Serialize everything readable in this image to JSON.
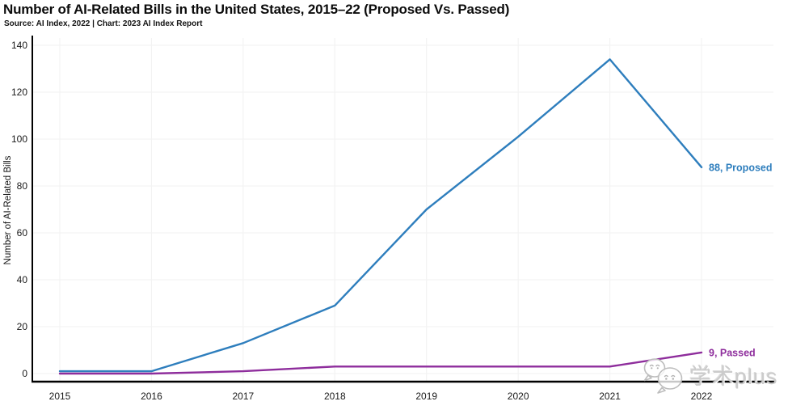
{
  "title": "Number of AI-Related Bills in the United States, 2015–22 (Proposed Vs. Passed)",
  "subtitle": "Source: AI Index, 2022 | Chart: 2023 AI Index Report",
  "watermark": {
    "text": "学术plus",
    "icon": "chat-bubbles-icon"
  },
  "colors": {
    "proposed": "#2e7ebd",
    "passed": "#8e2d9c",
    "axis": "#000000",
    "gridline": "#f3f3f3",
    "tick_text": "#1a1a1a"
  },
  "chart_data": {
    "type": "line",
    "title": "Number of AI-Related Bills in the United States, 2015–22 (Proposed Vs. Passed)",
    "x": [
      "2015",
      "2016",
      "2017",
      "2018",
      "2019",
      "2020",
      "2021",
      "2022"
    ],
    "series": [
      {
        "name": "Proposed",
        "color": "#2e7ebd",
        "values": [
          1,
          1,
          13,
          29,
          70,
          101,
          134,
          88
        ],
        "end_label": "88, Proposed"
      },
      {
        "name": "Passed",
        "color": "#8e2d9c",
        "values": [
          0,
          0,
          1,
          3,
          3,
          3,
          3,
          9
        ],
        "end_label": "9, Passed"
      }
    ],
    "xlabel": "",
    "ylabel": "Number of AI-Related Bills",
    "ylim": [
      0,
      140
    ],
    "yticks": [
      0,
      20,
      40,
      60,
      80,
      100,
      120,
      140
    ],
    "grid": true,
    "legend": "end-of-line-labels"
  }
}
